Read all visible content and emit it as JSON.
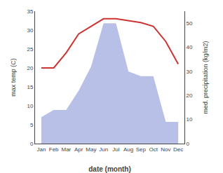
{
  "chart_data": {
    "type": "line",
    "categories": [
      "Jan",
      "Feb",
      "Mar",
      "Apr",
      "May",
      "Jun",
      "Jul",
      "Aug",
      "Sep",
      "Oct",
      "Nov",
      "Dec"
    ],
    "series": [
      {
        "type": "area",
        "color": "#b8c0e8",
        "axis": "y2",
        "values": [
          11,
          14,
          14,
          22,
          32,
          50,
          50,
          30,
          28,
          28,
          9,
          9
        ]
      },
      {
        "type": "line",
        "color": "#cc3333",
        "axis": "y",
        "values": [
          20,
          20,
          24,
          29,
          31,
          33,
          33,
          32.5,
          32,
          31,
          27,
          21
        ]
      }
    ],
    "xlabel": "date (month)",
    "ylabel": "max temp (C)",
    "y2label": "med. precipitation (kg/m2)",
    "ylim": [
      0,
      35
    ],
    "yticks": [
      0,
      5,
      10,
      15,
      20,
      25,
      30,
      35
    ],
    "y2lim": [
      0,
      55
    ],
    "y2ticks": [
      0,
      10,
      20,
      30,
      40,
      50
    ],
    "grid": false
  }
}
